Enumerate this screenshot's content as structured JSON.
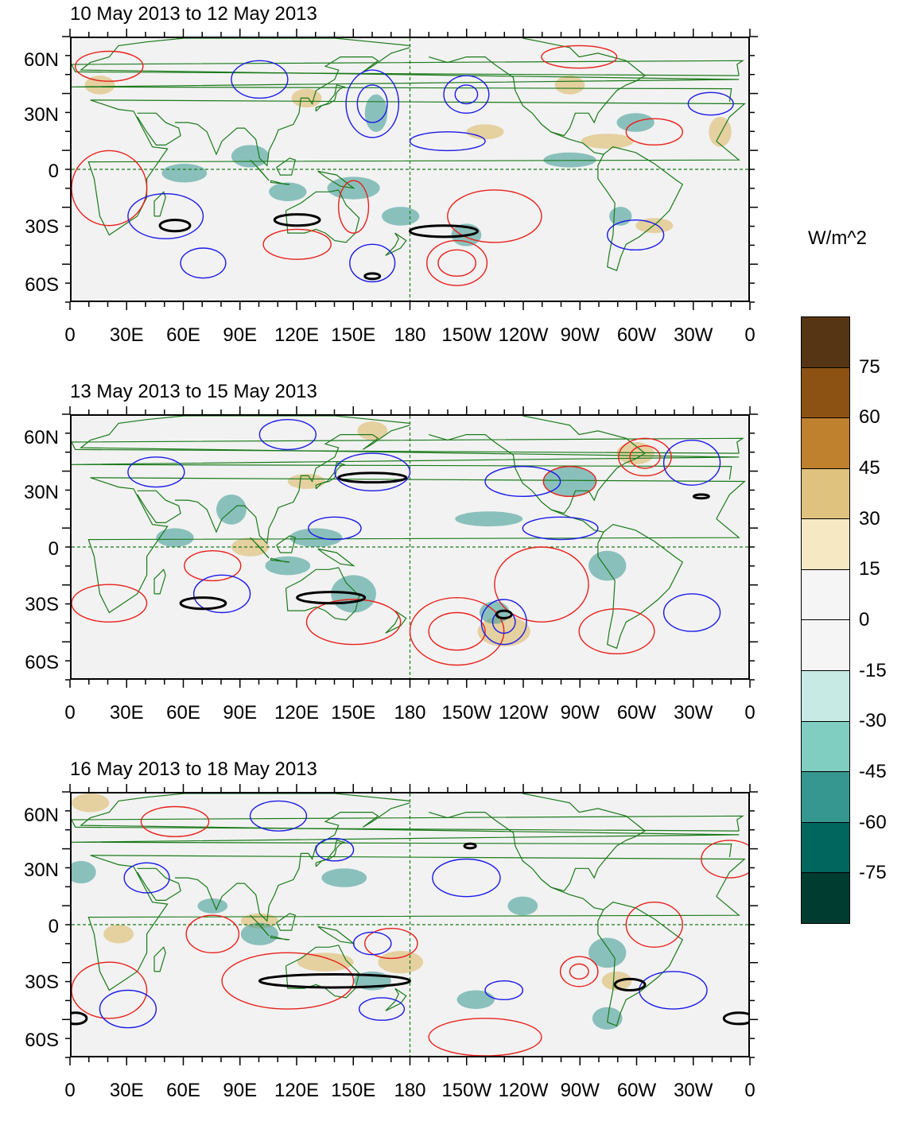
{
  "figure": {
    "panels": [
      {
        "title": "10 May 2013 to 12 May 2013"
      },
      {
        "title": "13 May 2013 to 15 May 2013"
      },
      {
        "title": "16 May 2013 to 18 May 2013"
      }
    ],
    "y_tick_labels": [
      "60N",
      "30N",
      "0",
      "30S",
      "60S"
    ],
    "x_tick_labels": [
      "0",
      "30E",
      "60E",
      "90E",
      "120E",
      "150E",
      "180",
      "150W",
      "120W",
      "90W",
      "60W",
      "30W",
      "0"
    ]
  },
  "colorbar": {
    "units": "W/m^2",
    "labels": [
      "75",
      "60",
      "45",
      "30",
      "15",
      "0",
      "-15",
      "-30",
      "-45",
      "-60",
      "-75"
    ],
    "colors": [
      "#553513",
      "#8c5213",
      "#bf812d",
      "#dfc27d",
      "#f6e8c3",
      "#f5f5f5",
      "#f5f5f5",
      "#c7eae5",
      "#80cdc1",
      "#35978f",
      "#01665e",
      "#003c30"
    ]
  },
  "map_colors": {
    "background": "#f2f2f2",
    "coast": "#1a7a1a",
    "positive_contour": "#e8201a",
    "negative_contour": "#1a1ae8",
    "significance_contour": "#000000",
    "wet_shade": "#35978f",
    "dry_shade": "#dfc27d"
  }
}
